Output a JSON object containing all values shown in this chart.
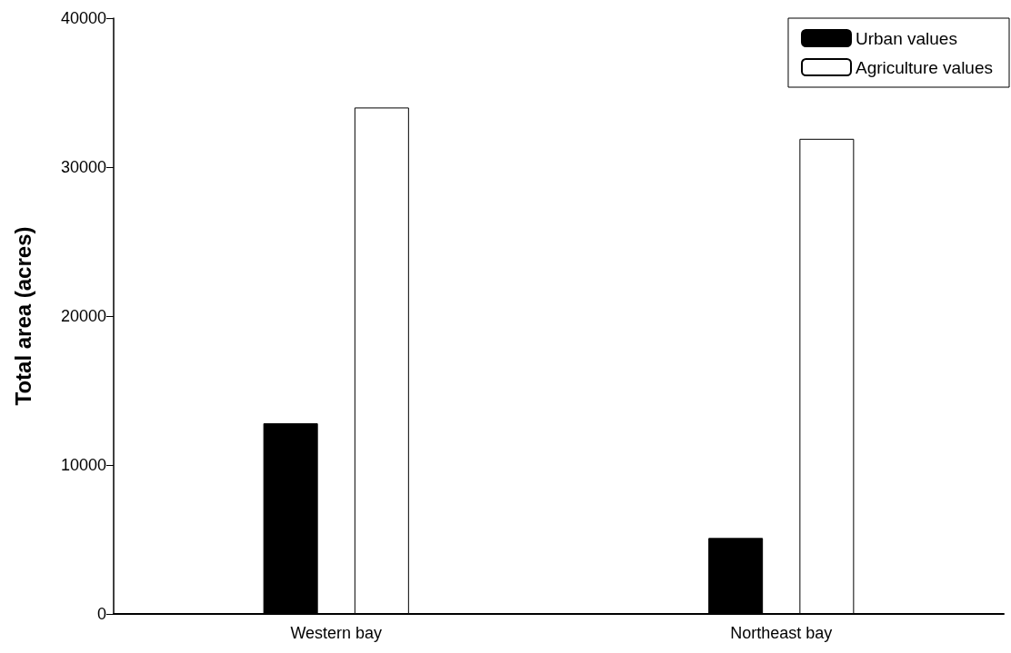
{
  "chart_data": {
    "type": "bar",
    "ylabel": "Total area (acres)",
    "categories": [
      "Western bay",
      "Northeast bay"
    ],
    "series": [
      {
        "name": "Urban values",
        "color": "#000000",
        "values": [
          12800,
          5100
        ]
      },
      {
        "name": "Agriculture values",
        "color": "#ffffff",
        "values": [
          34000,
          31900
        ]
      }
    ],
    "ylim": [
      0,
      40000
    ],
    "yticks": [
      0,
      10000,
      20000,
      30000,
      40000
    ],
    "grid": false,
    "legend": "top right"
  }
}
